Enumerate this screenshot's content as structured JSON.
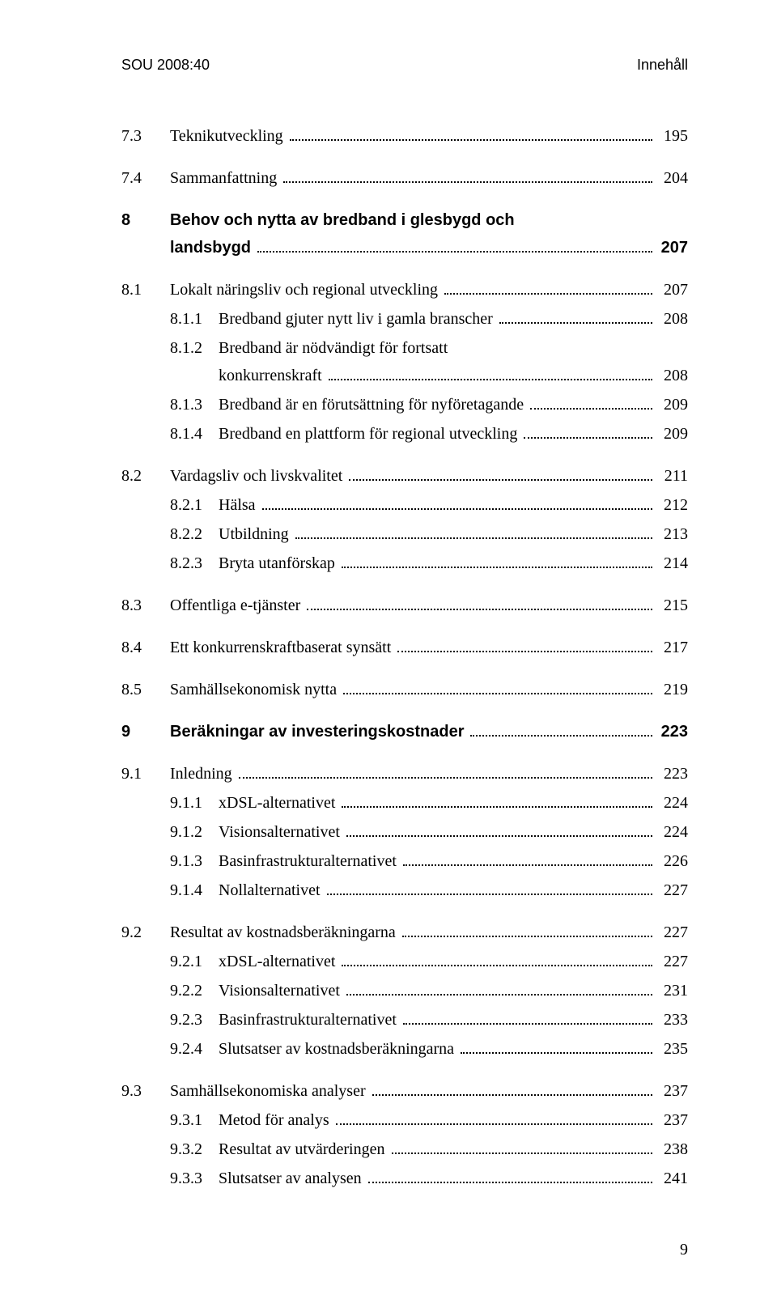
{
  "header": {
    "left": "SOU 2008:40",
    "right": "Innehåll"
  },
  "toc": [
    {
      "num": "7.3",
      "title": "Teknikutveckling",
      "page": "195",
      "indent": 1,
      "bold": false,
      "gap": false
    },
    {
      "num": "7.4",
      "title": "Sammanfattning",
      "page": "204",
      "indent": 1,
      "bold": false,
      "gap": true
    },
    {
      "num": "8",
      "title_lines": [
        "Behov och nytta av bredband i glesbygd och",
        "landsbygd"
      ],
      "page": "207",
      "indent": 1,
      "bold": true,
      "gap": true
    },
    {
      "num": "8.1",
      "title": "Lokalt näringsliv och regional utveckling",
      "page": "207",
      "indent": 1,
      "bold": false,
      "gap": true
    },
    {
      "num": "8.1.1",
      "title": "Bredband gjuter nytt liv i gamla branscher",
      "page": "208",
      "indent": 2,
      "bold": false,
      "gap": false
    },
    {
      "num": "8.1.2",
      "title_lines": [
        "Bredband är nödvändigt för fortsatt",
        "konkurrenskraft"
      ],
      "page": "208",
      "indent": 2,
      "bold": false,
      "gap": false
    },
    {
      "num": "8.1.3",
      "title": "Bredband är en förutsättning för nyföretagande",
      "page": "209",
      "indent": 2,
      "bold": false,
      "gap": false
    },
    {
      "num": "8.1.4",
      "title": "Bredband en plattform för regional utveckling",
      "page": "209",
      "indent": 2,
      "bold": false,
      "gap": false
    },
    {
      "num": "8.2",
      "title": "Vardagsliv och livskvalitet",
      "page": "211",
      "indent": 1,
      "bold": false,
      "gap": true
    },
    {
      "num": "8.2.1",
      "title": "Hälsa",
      "page": "212",
      "indent": 2,
      "bold": false,
      "gap": false
    },
    {
      "num": "8.2.2",
      "title": "Utbildning",
      "page": "213",
      "indent": 2,
      "bold": false,
      "gap": false
    },
    {
      "num": "8.2.3",
      "title": "Bryta utanförskap",
      "page": "214",
      "indent": 2,
      "bold": false,
      "gap": false
    },
    {
      "num": "8.3",
      "title": "Offentliga e-tjänster",
      "page": "215",
      "indent": 1,
      "bold": false,
      "gap": true
    },
    {
      "num": "8.4",
      "title": "Ett konkurrenskraftbaserat synsätt",
      "page": "217",
      "indent": 1,
      "bold": false,
      "gap": true
    },
    {
      "num": "8.5",
      "title": "Samhällsekonomisk nytta",
      "page": "219",
      "indent": 1,
      "bold": false,
      "gap": true
    },
    {
      "num": "9",
      "title": "Beräkningar av investeringskostnader",
      "page": "223",
      "indent": 1,
      "bold": true,
      "gap": true
    },
    {
      "num": "9.1",
      "title": "Inledning",
      "page": "223",
      "indent": 1,
      "bold": false,
      "gap": true
    },
    {
      "num": "9.1.1",
      "title": "xDSL-alternativet",
      "page": "224",
      "indent": 2,
      "bold": false,
      "gap": false
    },
    {
      "num": "9.1.2",
      "title": "Visionsalternativet",
      "page": "224",
      "indent": 2,
      "bold": false,
      "gap": false
    },
    {
      "num": "9.1.3",
      "title": "Basinfrastrukturalternativet",
      "page": "226",
      "indent": 2,
      "bold": false,
      "gap": false
    },
    {
      "num": "9.1.4",
      "title": "Nollalternativet",
      "page": "227",
      "indent": 2,
      "bold": false,
      "gap": false
    },
    {
      "num": "9.2",
      "title": "Resultat av kostnadsberäkningarna",
      "page": "227",
      "indent": 1,
      "bold": false,
      "gap": true
    },
    {
      "num": "9.2.1",
      "title": "xDSL-alternativet",
      "page": "227",
      "indent": 2,
      "bold": false,
      "gap": false
    },
    {
      "num": "9.2.2",
      "title": "Visionsalternativet",
      "page": "231",
      "indent": 2,
      "bold": false,
      "gap": false
    },
    {
      "num": "9.2.3",
      "title": "Basinfrastrukturalternativet",
      "page": "233",
      "indent": 2,
      "bold": false,
      "gap": false
    },
    {
      "num": "9.2.4",
      "title": "Slutsatser av kostnadsberäkningarna",
      "page": "235",
      "indent": 2,
      "bold": false,
      "gap": false
    },
    {
      "num": "9.3",
      "title": "Samhällsekonomiska analyser",
      "page": "237",
      "indent": 1,
      "bold": false,
      "gap": true
    },
    {
      "num": "9.3.1",
      "title": "Metod för analys",
      "page": "237",
      "indent": 2,
      "bold": false,
      "gap": false
    },
    {
      "num": "9.3.2",
      "title": "Resultat av utvärderingen",
      "page": "238",
      "indent": 2,
      "bold": false,
      "gap": false
    },
    {
      "num": "9.3.3",
      "title": "Slutsatser av analysen",
      "page": "241",
      "indent": 2,
      "bold": false,
      "gap": false
    }
  ],
  "footer_page": "9"
}
